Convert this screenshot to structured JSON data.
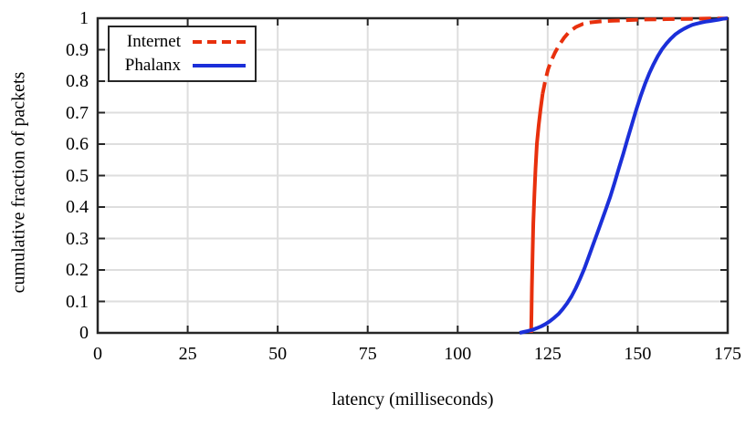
{
  "colors": {
    "background": "#ffffff",
    "frame": "#262626",
    "grid": "#dedede",
    "text": "#000000",
    "internet_red": "#e8300d",
    "phalanx_blue": "#1b2fd9"
  },
  "chart_data": {
    "type": "line",
    "title": "",
    "xlabel": "latency (milliseconds)",
    "ylabel": "cumulative fraction of packets",
    "xlim": [
      0,
      175
    ],
    "ylim": [
      0,
      1
    ],
    "grid": true,
    "legend_position": "top-left",
    "xticks": [
      {
        "value": 0,
        "label": "0"
      },
      {
        "value": 25,
        "label": "25"
      },
      {
        "value": 50,
        "label": "50"
      },
      {
        "value": 75,
        "label": "75"
      },
      {
        "value": 100,
        "label": "100"
      },
      {
        "value": 125,
        "label": "125"
      },
      {
        "value": 150,
        "label": "150"
      },
      {
        "value": 175,
        "label": "175"
      }
    ],
    "yticks": [
      {
        "value": 0,
        "label": "0"
      },
      {
        "value": 0.1,
        "label": "0.1"
      },
      {
        "value": 0.2,
        "label": "0.2"
      },
      {
        "value": 0.3,
        "label": "0.3"
      },
      {
        "value": 0.4,
        "label": "0.4"
      },
      {
        "value": 0.5,
        "label": "0.5"
      },
      {
        "value": 0.6,
        "label": "0.6"
      },
      {
        "value": 0.7,
        "label": "0.7"
      },
      {
        "value": 0.8,
        "label": "0.8"
      },
      {
        "value": 0.9,
        "label": "0.9"
      },
      {
        "value": 1,
        "label": "1"
      }
    ],
    "series": [
      {
        "name": "Internet",
        "color": "#e8300d",
        "style": "dashed",
        "solid_until_y": 0.74,
        "points": [
          [
            120.4,
            0
          ],
          [
            120.5,
            0.06
          ],
          [
            120.6,
            0.14
          ],
          [
            120.8,
            0.25
          ],
          [
            121.0,
            0.35
          ],
          [
            121.3,
            0.44
          ],
          [
            121.6,
            0.52
          ],
          [
            122.0,
            0.6
          ],
          [
            122.5,
            0.66
          ],
          [
            123.0,
            0.71
          ],
          [
            123.6,
            0.76
          ],
          [
            124.3,
            0.8
          ],
          [
            125.1,
            0.838
          ],
          [
            126.0,
            0.865
          ],
          [
            127.0,
            0.89
          ],
          [
            128.2,
            0.915
          ],
          [
            129.5,
            0.937
          ],
          [
            131.0,
            0.957
          ],
          [
            132.8,
            0.972
          ],
          [
            134.8,
            0.982
          ],
          [
            137.0,
            0.987
          ],
          [
            140.0,
            0.99
          ],
          [
            143.0,
            0.992
          ],
          [
            147.0,
            0.994
          ],
          [
            152.0,
            0.996
          ],
          [
            158.0,
            0.997
          ],
          [
            165.0,
            0.998
          ],
          [
            170.0,
            0.999
          ],
          [
            175.0,
            0.999
          ]
        ]
      },
      {
        "name": "Phalanx",
        "color": "#1b2fd9",
        "style": "solid",
        "points": [
          [
            117.2,
            0
          ],
          [
            118.3,
            0.003
          ],
          [
            119.5,
            0.006
          ],
          [
            120.8,
            0.01
          ],
          [
            122.0,
            0.015
          ],
          [
            123.2,
            0.021
          ],
          [
            124.4,
            0.028
          ],
          [
            125.6,
            0.037
          ],
          [
            126.8,
            0.048
          ],
          [
            128.0,
            0.06
          ],
          [
            129.2,
            0.076
          ],
          [
            130.4,
            0.094
          ],
          [
            131.6,
            0.116
          ],
          [
            132.8,
            0.142
          ],
          [
            134.0,
            0.172
          ],
          [
            135.2,
            0.205
          ],
          [
            136.4,
            0.242
          ],
          [
            137.6,
            0.28
          ],
          [
            138.8,
            0.318
          ],
          [
            140.0,
            0.356
          ],
          [
            141.2,
            0.394
          ],
          [
            142.4,
            0.434
          ],
          [
            143.6,
            0.478
          ],
          [
            144.8,
            0.524
          ],
          [
            146.0,
            0.57
          ],
          [
            147.2,
            0.617
          ],
          [
            148.4,
            0.663
          ],
          [
            149.6,
            0.71
          ],
          [
            150.8,
            0.752
          ],
          [
            152.0,
            0.79
          ],
          [
            153.2,
            0.824
          ],
          [
            154.4,
            0.854
          ],
          [
            155.6,
            0.88
          ],
          [
            156.8,
            0.902
          ],
          [
            158.0,
            0.92
          ],
          [
            159.2,
            0.935
          ],
          [
            160.4,
            0.948
          ],
          [
            161.6,
            0.958
          ],
          [
            162.8,
            0.966
          ],
          [
            164.0,
            0.973
          ],
          [
            165.2,
            0.979
          ],
          [
            166.4,
            0.983
          ],
          [
            167.6,
            0.986
          ],
          [
            168.8,
            0.989
          ],
          [
            170.0,
            0.991
          ],
          [
            171.2,
            0.993
          ],
          [
            172.4,
            0.995
          ],
          [
            173.6,
            0.998
          ],
          [
            175.0,
            1.0
          ]
        ]
      }
    ]
  }
}
